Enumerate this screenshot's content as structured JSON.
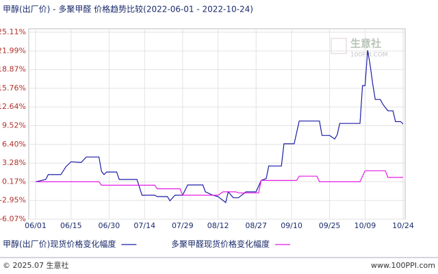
{
  "chart_data": {
    "type": "line",
    "title": "甲醇(出厂价) - 多聚甲醛 价格趋势比较(2022-06-01 - 2022-10-24)",
    "watermark": [
      "生意社",
      "100PPI.COM"
    ],
    "footer_left": "© 2025.07 生意社",
    "footer_right": "www.100PPI.com",
    "xlim": [
      "06/01",
      "10/24"
    ],
    "xticks": [
      "06/01",
      "06/15",
      "06/30",
      "07/14",
      "07/29",
      "08/12",
      "08/27",
      "09/10",
      "09/25",
      "10/09",
      "10/24"
    ],
    "ylim": [
      -6.07,
      25.11
    ],
    "yticks": [
      {
        "value": -6.07,
        "label": "-6.07%"
      },
      {
        "value": -2.95,
        "label": "-2.95%"
      },
      {
        "value": 0.17,
        "label": "0.17%"
      },
      {
        "value": 3.28,
        "label": "3.28%"
      },
      {
        "value": 6.4,
        "label": "6.40%"
      },
      {
        "value": 9.52,
        "label": "9.52%"
      },
      {
        "value": 12.64,
        "label": "12.64%"
      },
      {
        "value": 15.76,
        "label": "15.76%"
      },
      {
        "value": 18.87,
        "label": "18.87%"
      },
      {
        "value": 21.99,
        "label": "21.99%"
      },
      {
        "value": 25.11,
        "label": "25.11%"
      }
    ],
    "grid": true,
    "series": [
      {
        "name": "甲醇(出厂价)现货价格变化幅度",
        "color": "#1a1aa6",
        "x": [
          "06/01",
          "06/05",
          "06/06",
          "06/11",
          "06/13",
          "06/15",
          "06/19",
          "06/21",
          "06/26",
          "06/27",
          "06/28",
          "06/29",
          "07/03",
          "07/04",
          "07/11",
          "07/13",
          "07/18",
          "07/19",
          "07/23",
          "07/24",
          "07/26",
          "07/29",
          "07/31",
          "08/06",
          "08/07",
          "08/10",
          "08/12",
          "08/15",
          "08/16",
          "08/18",
          "08/20",
          "08/23",
          "08/27",
          "08/29",
          "08/31",
          "09/01",
          "09/06",
          "09/07",
          "09/11",
          "09/13",
          "09/21",
          "09/22",
          "09/25",
          "09/27",
          "09/28",
          "09/29",
          "10/07",
          "10/08",
          "10/09",
          "10/10",
          "10/11",
          "10/12",
          "10/13",
          "10/15",
          "10/16",
          "10/18",
          "10/20",
          "10/21",
          "10/23",
          "10/24"
        ],
        "values": [
          0.17,
          0.55,
          1.36,
          1.36,
          2.7,
          3.5,
          3.4,
          4.3,
          4.3,
          1.9,
          1.36,
          1.8,
          1.8,
          0.55,
          0.55,
          -2.07,
          -2.07,
          -2.3,
          -2.3,
          -3.0,
          -2.07,
          -2.07,
          -0.36,
          -0.36,
          -1.5,
          -2.07,
          -2.3,
          -3.3,
          -1.5,
          -2.5,
          -2.5,
          -1.5,
          -1.5,
          0.4,
          0.7,
          2.8,
          2.8,
          6.5,
          6.5,
          10.3,
          10.3,
          7.9,
          7.9,
          7.3,
          8.0,
          9.9,
          9.9,
          16.2,
          16.2,
          22.1,
          19.6,
          16.5,
          13.9,
          13.9,
          13.1,
          12.0,
          12.0,
          10.2,
          10.2,
          9.8
        ]
      },
      {
        "name": "多聚甲醛现货价格变化幅度",
        "color": "#e619e6",
        "x": [
          "06/01",
          "06/26",
          "06/27",
          "07/18",
          "07/19",
          "07/28",
          "07/29",
          "08/12",
          "08/14",
          "08/19",
          "08/20",
          "08/28",
          "08/29",
          "09/12",
          "09/13",
          "09/20",
          "09/21",
          "10/07",
          "10/09",
          "10/17",
          "10/18",
          "10/24"
        ],
        "values": [
          0.17,
          0.17,
          -0.4,
          -0.4,
          -1.0,
          -1.0,
          -2.07,
          -2.07,
          -1.5,
          -1.5,
          -1.7,
          -1.7,
          0.4,
          0.4,
          1.1,
          1.1,
          0.17,
          0.17,
          2.0,
          2.0,
          0.9,
          0.9
        ]
      }
    ]
  }
}
